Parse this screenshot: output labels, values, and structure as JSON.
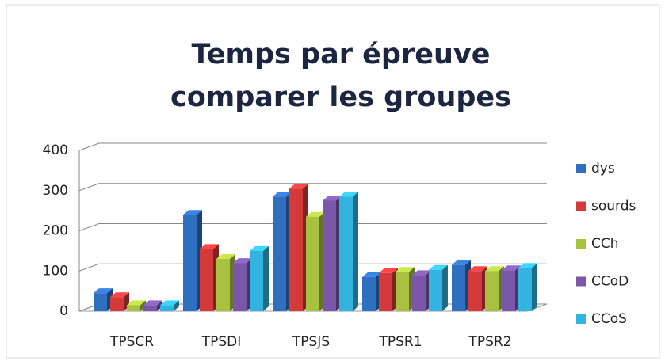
{
  "chart_data": {
    "type": "bar3d",
    "title": [
      "Temps par épreuve",
      "comparer les groupes"
    ],
    "categories": [
      "TPSCR",
      "TPSDI",
      "TPSJS",
      "TPSR1",
      "TPSR2"
    ],
    "series": [
      {
        "name": "dys",
        "color": "#2f6fc0",
        "values": [
          45,
          240,
          285,
          85,
          115
        ]
      },
      {
        "name": "sourds",
        "color": "#d43a3a",
        "values": [
          35,
          155,
          305,
          95,
          100
        ]
      },
      {
        "name": "CCh",
        "color": "#a8c23f",
        "values": [
          15,
          130,
          235,
          98,
          100
        ]
      },
      {
        "name": "CCoD",
        "color": "#7a57a8",
        "values": [
          15,
          120,
          275,
          90,
          102
        ]
      },
      {
        "name": "CCoS",
        "color": "#33b4e0",
        "values": [
          15,
          150,
          285,
          103,
          108
        ]
      }
    ],
    "ylim": [
      0,
      400
    ],
    "yticks": [
      0,
      100,
      200,
      300,
      400
    ],
    "grid": true,
    "legend": "right"
  }
}
